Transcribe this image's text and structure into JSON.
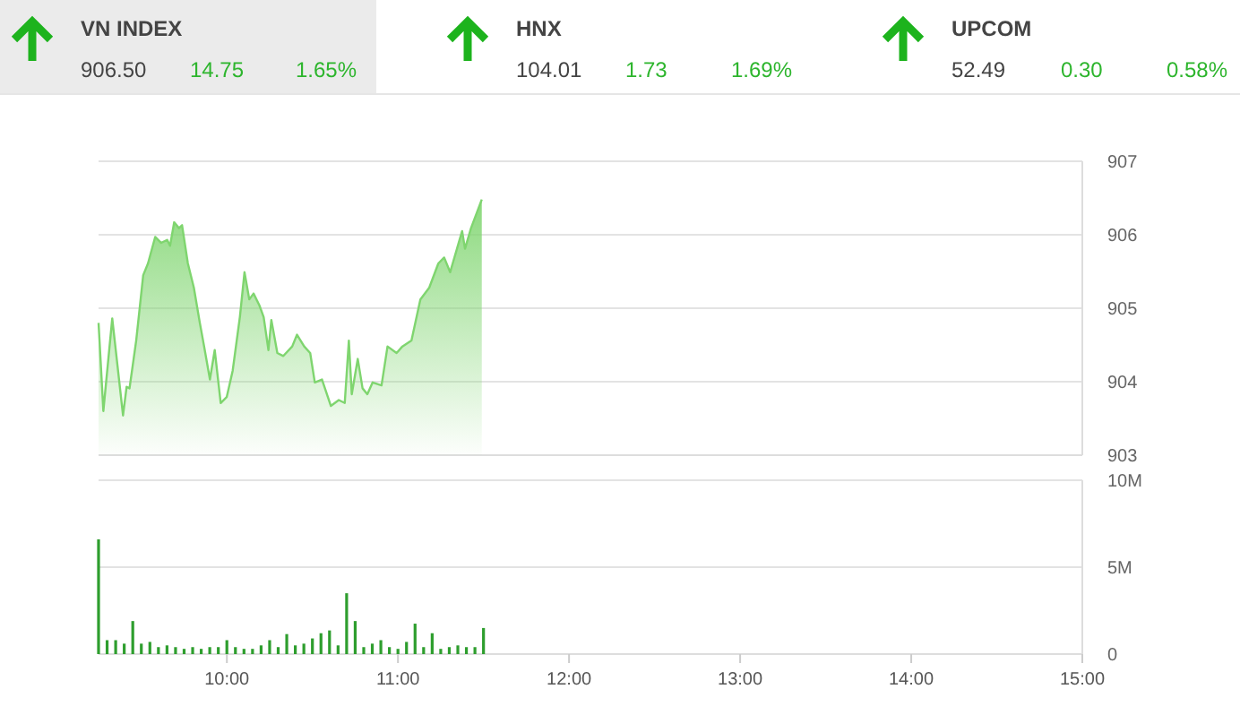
{
  "chart_data": [
    {
      "type": "other",
      "annotations": [
        "VN INDEX",
        "906.50",
        "14.75",
        "1.65%",
        "HNX",
        "104.01",
        "1.73",
        "1.69%",
        "UPCOM",
        "52.49",
        "0.30",
        "0.58%"
      ]
    },
    {
      "type": "area",
      "color": "#7fd56f",
      "tick_labels": "y",
      "grid": "y",
      "xlim": [
        9.25,
        15
      ],
      "ylim": [
        903,
        907
      ],
      "yticks": [
        903,
        904,
        905,
        906,
        907
      ],
      "x": [
        9.25,
        9.278,
        9.33,
        9.393,
        9.414,
        9.431,
        9.47,
        9.511,
        9.539,
        9.581,
        9.616,
        9.651,
        9.668,
        9.692,
        9.72,
        9.738,
        9.772,
        9.807,
        9.842,
        9.867,
        9.901,
        9.929,
        9.964,
        9.999,
        10.034,
        10.076,
        10.103,
        10.131,
        10.156,
        10.19,
        10.215,
        10.243,
        10.26,
        10.295,
        10.33,
        10.382,
        10.41,
        10.452,
        10.487,
        10.514,
        10.556,
        10.608,
        10.654,
        10.689,
        10.713,
        10.73,
        10.765,
        10.793,
        10.821,
        10.852,
        10.904,
        10.939,
        10.992,
        11.026,
        11.079,
        11.131,
        11.183,
        11.236,
        11.27,
        11.305,
        11.34,
        11.375,
        11.392,
        11.427,
        11.49
      ],
      "values": [
        904.8,
        903.6,
        904.86,
        903.54,
        903.93,
        903.91,
        904.56,
        905.45,
        905.61,
        905.97,
        905.89,
        905.93,
        905.85,
        906.17,
        906.09,
        906.13,
        905.61,
        905.28,
        904.8,
        904.48,
        904.03,
        904.43,
        903.71,
        903.79,
        904.15,
        904.88,
        905.49,
        905.12,
        905.2,
        905.04,
        904.88,
        904.43,
        904.84,
        904.39,
        904.35,
        904.48,
        904.64,
        904.48,
        904.39,
        903.99,
        904.03,
        903.67,
        903.75,
        903.71,
        904.56,
        903.83,
        904.31,
        903.91,
        903.83,
        903.99,
        903.95,
        904.48,
        904.39,
        904.48,
        904.56,
        905.12,
        905.28,
        905.61,
        905.69,
        905.49,
        905.77,
        906.05,
        905.81,
        906.09,
        906.48
      ]
    },
    {
      "type": "bar",
      "color": "#2e9e2e",
      "grid": "y",
      "xlim": [
        9.25,
        15
      ],
      "ylim": [
        0,
        10
      ],
      "xticks": [
        {
          "value": 10,
          "label": "10:00"
        },
        {
          "value": 11,
          "label": "11:00"
        },
        {
          "value": 12,
          "label": "12:00"
        },
        {
          "value": 13,
          "label": "13:00"
        },
        {
          "value": 14,
          "label": "14:00"
        },
        {
          "value": 15,
          "label": "15:00"
        }
      ],
      "yticks": [
        0,
        {
          "value": 5,
          "label": "5M"
        },
        {
          "value": 10,
          "label": "10M"
        }
      ],
      "x": [
        9.25,
        9.3,
        9.35,
        9.4,
        9.45,
        9.5,
        9.55,
        9.6,
        9.65,
        9.7,
        9.75,
        9.8,
        9.85,
        9.9,
        9.95,
        10,
        10.05,
        10.1,
        10.15,
        10.2,
        10.25,
        10.3,
        10.35,
        10.4,
        10.45,
        10.5,
        10.55,
        10.6,
        10.65,
        10.7,
        10.75,
        10.8,
        10.85,
        10.9,
        10.95,
        11,
        11.05,
        11.1,
        11.15,
        11.2,
        11.25,
        11.3,
        11.35,
        11.4,
        11.45,
        11.5
      ],
      "values": [
        6.6,
        0.8,
        0.8,
        0.6,
        1.9,
        0.6,
        0.7,
        0.4,
        0.5,
        0.4,
        0.3,
        0.4,
        0.3,
        0.4,
        0.4,
        0.8,
        0.4,
        0.3,
        0.3,
        0.5,
        0.8,
        0.4,
        1.15,
        0.5,
        0.6,
        0.9,
        1.2,
        1.36,
        0.5,
        3.5,
        1.9,
        0.4,
        0.6,
        0.8,
        0.4,
        0.3,
        0.7,
        1.75,
        0.4,
        1.2,
        0.3,
        0.4,
        0.5,
        0.4,
        0.4,
        1.5
      ]
    }
  ]
}
